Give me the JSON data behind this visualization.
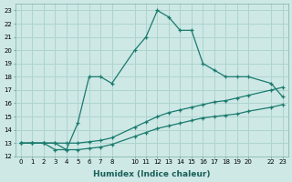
{
  "xlabel": "Humidex (Indice chaleur)",
  "ylabel": "",
  "background_color": "#cde8e5",
  "grid_color": "#aed4d0",
  "line_color": "#1a7a6e",
  "xlim": [
    -0.5,
    23.5
  ],
  "ylim": [
    12,
    23.5
  ],
  "xticks": [
    0,
    1,
    2,
    3,
    4,
    5,
    6,
    7,
    8,
    10,
    11,
    12,
    13,
    14,
    15,
    16,
    17,
    18,
    19,
    20,
    22,
    23
  ],
  "yticks": [
    12,
    13,
    14,
    15,
    16,
    17,
    18,
    19,
    20,
    21,
    22,
    23
  ],
  "line1_x": [
    0,
    1,
    2,
    3,
    4,
    5,
    6,
    7,
    8,
    10,
    11,
    12,
    13,
    14,
    15,
    16,
    17,
    18,
    19,
    20,
    22,
    23
  ],
  "line1_y": [
    13,
    13,
    13,
    13,
    12.5,
    14.5,
    18,
    18,
    17.5,
    20,
    21,
    23,
    22.5,
    21.5,
    21.5,
    19,
    18.5,
    18,
    18,
    18,
    17.5,
    16.5
  ],
  "line2_x": [
    0,
    1,
    2,
    3,
    4,
    5,
    6,
    7,
    8,
    10,
    11,
    12,
    13,
    14,
    15,
    16,
    17,
    18,
    19,
    20,
    22,
    23
  ],
  "line2_y": [
    13,
    13,
    13,
    13,
    13.0,
    13.0,
    13.1,
    13.2,
    13.4,
    14.2,
    14.6,
    15.0,
    15.3,
    15.5,
    15.7,
    15.9,
    16.1,
    16.2,
    16.4,
    16.6,
    17.0,
    17.2
  ],
  "line3_x": [
    0,
    1,
    2,
    3,
    4,
    5,
    6,
    7,
    8,
    10,
    11,
    12,
    13,
    14,
    15,
    16,
    17,
    18,
    19,
    20,
    22,
    23
  ],
  "line3_y": [
    13,
    13,
    13,
    12.5,
    12.5,
    12.5,
    12.6,
    12.7,
    12.9,
    13.5,
    13.8,
    14.1,
    14.3,
    14.5,
    14.7,
    14.9,
    15.0,
    15.1,
    15.2,
    15.4,
    15.7,
    15.9
  ]
}
